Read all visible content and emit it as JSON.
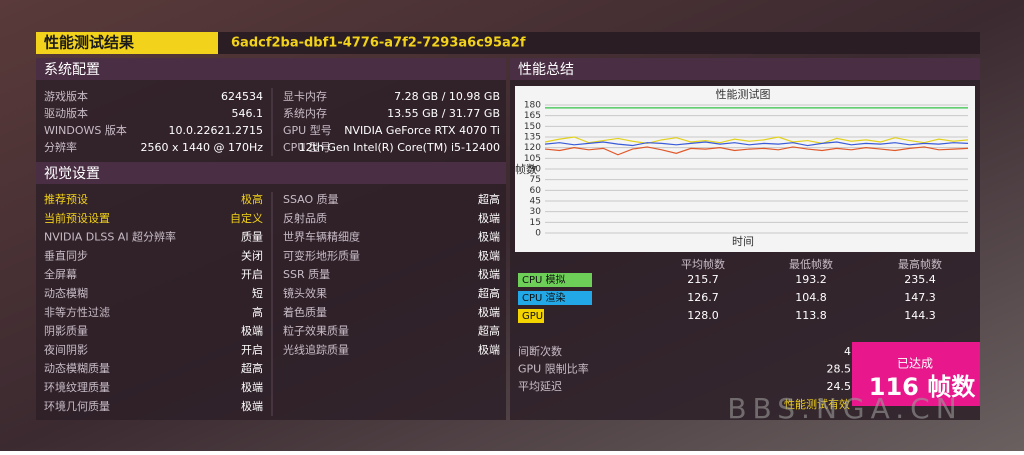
{
  "header": {
    "title": "性能测试结果",
    "run_id": "6adcf2ba-dbf1-4776-a7f2-7293a6c95a2f"
  },
  "system": {
    "title": "系统配置",
    "left": [
      [
        "游戏版本",
        "624534"
      ],
      [
        "驱动版本",
        "546.1"
      ],
      [
        "WINDOWS 版本",
        "10.0.22621.2715"
      ],
      [
        "分辨率",
        "2560 x 1440 @ 170Hz"
      ]
    ],
    "right": [
      [
        "显卡内存",
        "7.28 GB / 10.98 GB"
      ],
      [
        "系统内存",
        "13.55 GB / 31.77 GB"
      ],
      [
        "GPU 型号",
        "NVIDIA GeForce RTX 4070 Ti"
      ],
      [
        "CPU 型号",
        "12th Gen Intel(R) Core(TM) i5-12400"
      ]
    ]
  },
  "visual": {
    "title": "视觉设置",
    "left": [
      [
        "推荐预设",
        "极高"
      ],
      [
        "当前预设设置",
        "自定义"
      ],
      [
        "NVIDIA DLSS AI 超分辨率",
        "质量"
      ],
      [
        "垂直同步",
        "关闭"
      ],
      [
        "全屏幕",
        "开启"
      ],
      [
        "动态模糊",
        "短"
      ],
      [
        "非等方性过滤",
        "高"
      ],
      [
        "阴影质量",
        "极端"
      ],
      [
        "夜间阴影",
        "开启"
      ],
      [
        "动态模糊质量",
        "超高"
      ],
      [
        "环境纹理质量",
        "极端"
      ],
      [
        "环境几何质量",
        "极端"
      ]
    ],
    "right": [
      [
        "SSAO 质量",
        "超高"
      ],
      [
        "反射品质",
        "极端"
      ],
      [
        "世界车辆精细度",
        "极端"
      ],
      [
        "可变形地形质量",
        "极端"
      ],
      [
        "SSR 质量",
        "极端"
      ],
      [
        "镜头效果",
        "超高"
      ],
      [
        "着色质量",
        "极端"
      ],
      [
        "粒子效果质量",
        "超高"
      ],
      [
        "光线追踪质量",
        "极端"
      ]
    ],
    "highlight_rows": 2,
    "highlight_color": "#f2d21a"
  },
  "summary": {
    "title": "性能总结",
    "table": {
      "headers": [
        "平均帧数",
        "最低帧数",
        "最高帧数"
      ],
      "rows": [
        {
          "label": "CPU 模拟",
          "color": "#6ecf58",
          "values": [
            "215.7",
            "193.2",
            "235.4"
          ]
        },
        {
          "label": "CPU 渲染",
          "color": "#22a8e6",
          "values": [
            "126.7",
            "104.8",
            "147.3"
          ]
        },
        {
          "label": "GPU",
          "color": "#f3d400",
          "values": [
            "128.0",
            "113.8",
            "144.3"
          ]
        }
      ]
    },
    "stats": [
      [
        "间断次数",
        "4"
      ],
      [
        "GPU 限制比率",
        "28.5"
      ],
      [
        "平均延迟",
        "24.5"
      ]
    ],
    "badge": {
      "label": "已达成",
      "value": "116 帧数"
    },
    "valid": "性能测试有效"
  },
  "watermark": "BBS.NGA.CN",
  "chart_data": {
    "type": "line",
    "title": "性能测试图",
    "y_label": "帧数",
    "x_label": "时间",
    "ylim": [
      0,
      180
    ],
    "yticks": [
      0,
      15,
      30,
      45,
      60,
      75,
      90,
      105,
      120,
      135,
      150,
      165,
      180
    ],
    "grid": true,
    "series": [
      {
        "color": "#34c24a",
        "values": [
          176,
          176,
          176,
          176,
          176,
          176,
          176,
          176,
          176,
          176,
          176,
          176,
          176,
          176,
          176,
          176,
          176,
          176,
          176,
          176,
          176,
          176,
          176,
          176,
          176,
          176,
          176,
          176,
          176,
          176
        ]
      },
      {
        "color": "#e2d21e",
        "values": [
          128,
          132,
          135,
          127,
          130,
          133,
          129,
          126,
          131,
          134,
          128,
          130,
          127,
          132,
          129,
          131,
          135,
          128,
          130,
          126,
          133,
          129,
          131,
          128,
          134,
          130,
          127,
          132,
          129,
          131
        ]
      },
      {
        "color": "#3a5bd8",
        "values": [
          125,
          127,
          124,
          126,
          128,
          125,
          123,
          127,
          126,
          124,
          126,
          128,
          125,
          127,
          124,
          126,
          125,
          127,
          123,
          126,
          128,
          124,
          126,
          125,
          127,
          124,
          126,
          125,
          127,
          126
        ]
      },
      {
        "color": "#e0582a",
        "values": [
          118,
          116,
          120,
          117,
          119,
          110,
          118,
          121,
          117,
          112,
          119,
          118,
          120,
          116,
          118,
          119,
          117,
          121,
          118,
          116,
          119,
          117,
          120,
          118,
          116,
          119,
          121,
          117,
          118,
          119
        ]
      }
    ]
  }
}
